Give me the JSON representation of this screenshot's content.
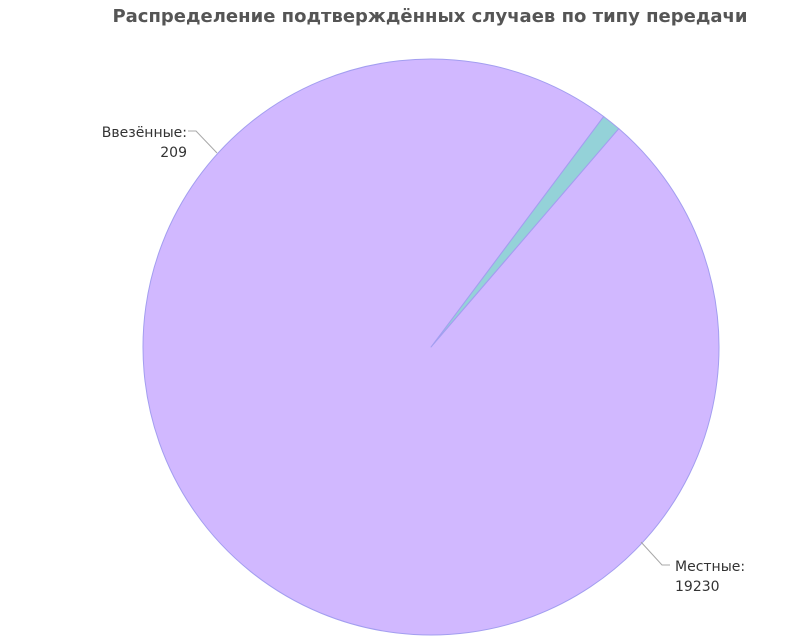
{
  "chart_data": {
    "type": "pie",
    "title": "Распределение подтверждённых случаев по типу передачи",
    "slices": [
      {
        "category": "Ввезённые",
        "label": "Ввезённые:",
        "value": 209,
        "value_text": "209",
        "color": "#94d2d8"
      },
      {
        "category": "Местные",
        "label": "Местные:",
        "value": 19230,
        "value_text": "19230",
        "color": "#d1b8ff"
      }
    ],
    "stroke_color": "#a39ef0",
    "leader_color": "#a8a8a8"
  }
}
